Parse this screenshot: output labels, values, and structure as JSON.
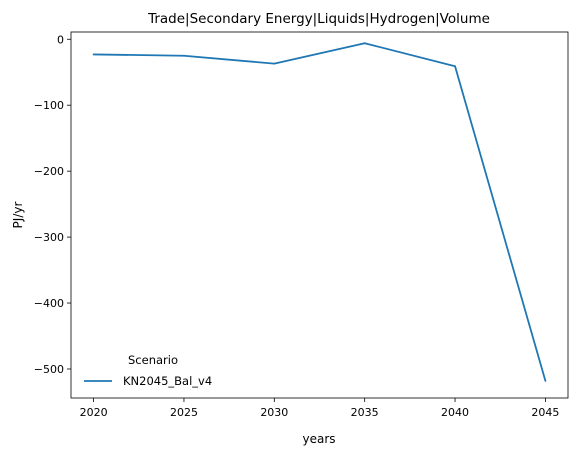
{
  "chart_data": {
    "type": "line",
    "title": "Trade|Secondary Energy|Liquids|Hydrogen|Volume",
    "xlabel": "years",
    "ylabel": "PJ/yr",
    "x": [
      2020,
      2025,
      2030,
      2035,
      2040,
      2045
    ],
    "xticks": [
      "2020",
      "2025",
      "2030",
      "2035",
      "2040",
      "2045"
    ],
    "yticks": [
      0,
      -100,
      -200,
      -300,
      -400,
      -500
    ],
    "ytick_labels": [
      "0",
      "−100",
      "−200",
      "−300",
      "−400",
      "−500"
    ],
    "xlim": [
      2018.75,
      2046.25
    ],
    "ylim": [
      -544,
      11
    ],
    "grid": false,
    "legend": {
      "title": "Scenario",
      "placement": "lower-left"
    },
    "series": [
      {
        "name": "KN2045_Bal_v4",
        "color": "#1f77b4",
        "values": [
          -23,
          -25,
          -37,
          -6,
          -41,
          -518
        ]
      }
    ]
  }
}
